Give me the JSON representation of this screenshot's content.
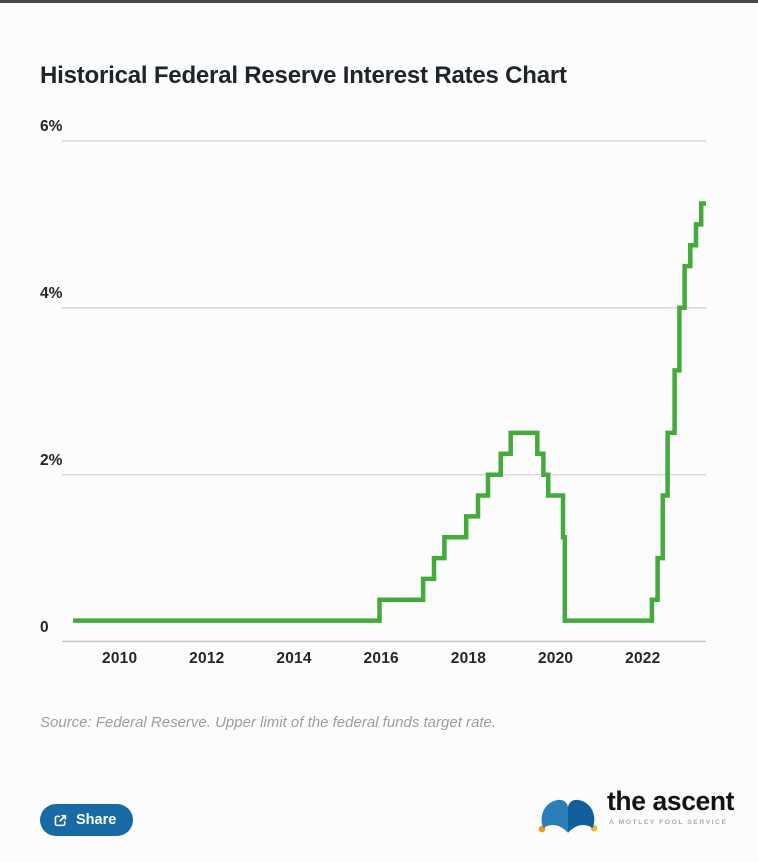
{
  "page": {
    "title": "Historical Federal Reserve Interest Rates Chart",
    "source_note": "Source: Federal Reserve. Upper limit of the federal funds target rate.",
    "share_label": "Share",
    "brand": {
      "name": "the ascent",
      "tagline": "A MOTLEY FOOL SERVICE"
    }
  },
  "icons": {
    "share_button": "share-export-icon",
    "brand_logo": "jester-hat-icon"
  },
  "colors": {
    "line": "#44aa3c",
    "grid": "#dbdbdb",
    "axis": "#c7c7c7",
    "title": "#1d242b",
    "tick": "#24262a",
    "source": "#9a9ea3",
    "shareBg": "#186aa4",
    "brand": "#121517",
    "tag": "#a9adb2",
    "hatLeft": "#2b7fb9",
    "hatRight": "#11609c",
    "dotLeft": "#f4990f",
    "dotRight": "#f7b32b",
    "topbar": "#474747"
  },
  "chart_data": {
    "type": "line",
    "subtype": "step",
    "title": "Historical Federal Reserve Interest Rates Chart",
    "xlabel": "",
    "ylabel": "",
    "x_unit": "year",
    "y_unit": "percent",
    "xlim": [
      2008.93,
      2023.45
    ],
    "ylim": [
      0,
      6.35
    ],
    "grid": "horizontal-only",
    "legend_position": "none",
    "xticks": [
      "2010",
      "2012",
      "2014",
      "2016",
      "2018",
      "2020",
      "2022"
    ],
    "xtick_values": [
      2010,
      2012,
      2014,
      2016,
      2018,
      2020,
      2022
    ],
    "yticks": [
      {
        "value": 0,
        "label": "0"
      },
      {
        "value": 2,
        "label": "2%"
      },
      {
        "value": 4,
        "label": "4%"
      },
      {
        "value": 6,
        "label": "6%"
      }
    ],
    "series": [
      {
        "name": "Federal funds target rate, upper limit (%)",
        "end_year": 2023.45,
        "step_points": [
          [
            2008.93,
            0.25
          ],
          [
            2015.96,
            0.5
          ],
          [
            2016.96,
            0.75
          ],
          [
            2017.21,
            1.0
          ],
          [
            2017.45,
            1.25
          ],
          [
            2017.95,
            1.5
          ],
          [
            2018.22,
            1.75
          ],
          [
            2018.45,
            2.0
          ],
          [
            2018.74,
            2.25
          ],
          [
            2018.97,
            2.5
          ],
          [
            2019.58,
            2.25
          ],
          [
            2019.72,
            2.0
          ],
          [
            2019.83,
            1.75
          ],
          [
            2020.17,
            1.25
          ],
          [
            2020.21,
            0.25
          ],
          [
            2022.21,
            0.5
          ],
          [
            2022.34,
            1.0
          ],
          [
            2022.46,
            1.75
          ],
          [
            2022.57,
            2.5
          ],
          [
            2022.73,
            3.25
          ],
          [
            2022.84,
            4.0
          ],
          [
            2022.96,
            4.5
          ],
          [
            2023.09,
            4.75
          ],
          [
            2023.22,
            5.0
          ],
          [
            2023.34,
            5.25
          ]
        ]
      }
    ]
  }
}
